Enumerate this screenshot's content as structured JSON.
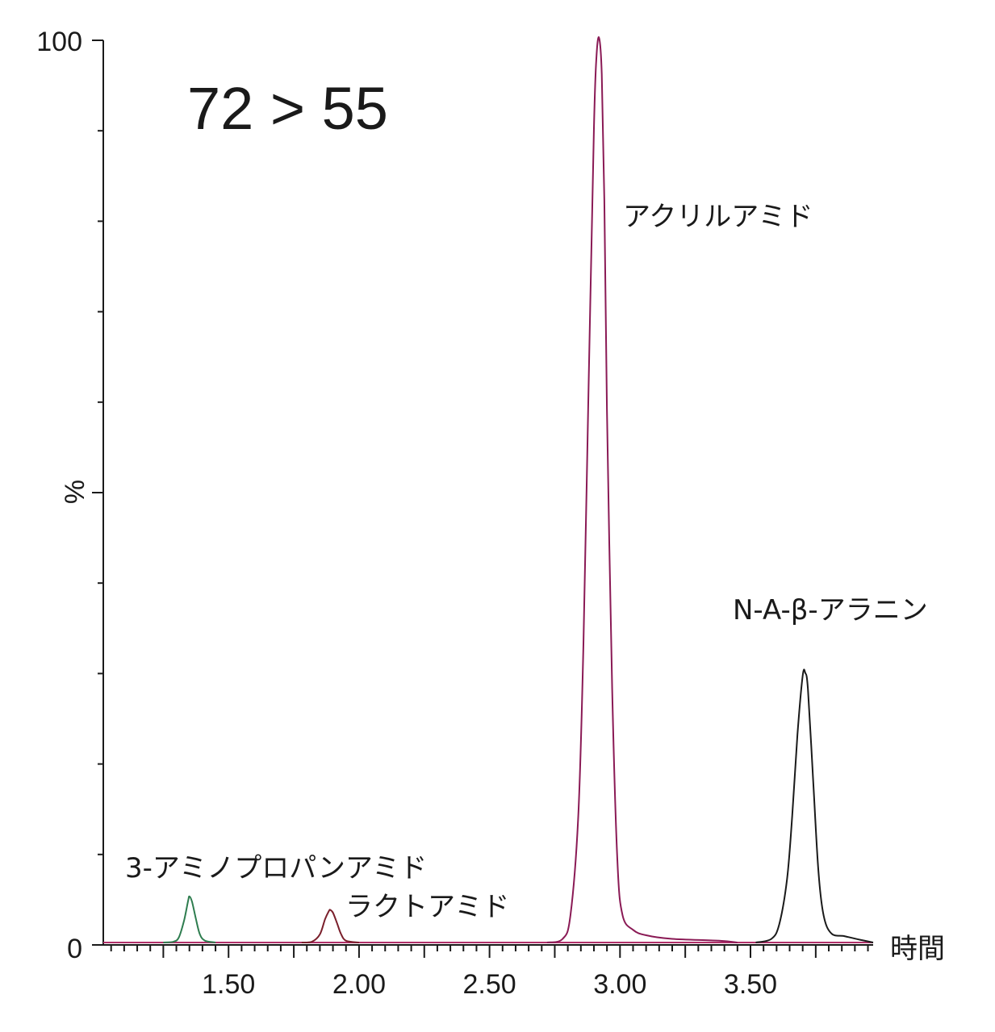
{
  "chart_data": {
    "type": "line",
    "title": "72 > 55",
    "xlabel": "時間",
    "ylabel": "%",
    "xlim": [
      1.02,
      3.97
    ],
    "ylim": [
      0,
      100
    ],
    "x_ticks": [
      1.5,
      2.0,
      2.5,
      3.0,
      3.5
    ],
    "x_tick_labels": [
      "1.50",
      "2.00",
      "2.50",
      "3.00",
      "3.50"
    ],
    "y_tick_labels": [
      "0",
      "%",
      "100"
    ],
    "baseline_color": "#b0306a",
    "series": [
      {
        "name": "3-アミノプロパンアミド",
        "color": "#2e7d4f",
        "peak_x": 1.35,
        "peak_y": 5.1,
        "points": [
          [
            1.25,
            0
          ],
          [
            1.29,
            0.1
          ],
          [
            1.31,
            0.6
          ],
          [
            1.33,
            2.5
          ],
          [
            1.345,
            4.6
          ],
          [
            1.35,
            5.1
          ],
          [
            1.36,
            4.5
          ],
          [
            1.375,
            2.6
          ],
          [
            1.39,
            0.9
          ],
          [
            1.41,
            0.2
          ],
          [
            1.45,
            0
          ]
        ]
      },
      {
        "name": "ラクトアミド",
        "color": "#7a1f2b",
        "peak_x": 1.89,
        "peak_y": 3.6,
        "points": [
          [
            1.78,
            0
          ],
          [
            1.82,
            0.1
          ],
          [
            1.85,
            0.9
          ],
          [
            1.87,
            2.6
          ],
          [
            1.885,
            3.5
          ],
          [
            1.89,
            3.6
          ],
          [
            1.9,
            3.3
          ],
          [
            1.915,
            2.2
          ],
          [
            1.93,
            1.0
          ],
          [
            1.95,
            0.2
          ],
          [
            2.0,
            0
          ]
        ]
      },
      {
        "name": "アクリルアミド",
        "color": "#8a1a55",
        "peak_x": 2.92,
        "peak_y": 100,
        "points": [
          [
            2.72,
            0
          ],
          [
            2.78,
            0.4
          ],
          [
            2.81,
            3
          ],
          [
            2.84,
            14
          ],
          [
            2.86,
            33
          ],
          [
            2.88,
            62
          ],
          [
            2.9,
            90
          ],
          [
            2.91,
            98
          ],
          [
            2.92,
            100
          ],
          [
            2.93,
            96
          ],
          [
            2.94,
            82
          ],
          [
            2.95,
            59
          ],
          [
            2.97,
            28
          ],
          [
            2.99,
            9
          ],
          [
            3.01,
            3
          ],
          [
            3.05,
            1.4
          ],
          [
            3.1,
            0.8
          ],
          [
            3.2,
            0.4
          ],
          [
            3.38,
            0.2
          ],
          [
            3.45,
            0
          ]
        ]
      },
      {
        "name": "N-A-β-アラニン",
        "color": "#1a1a1a",
        "peak_x": 3.71,
        "peak_y": 29.8,
        "points": [
          [
            3.52,
            0
          ],
          [
            3.58,
            0.4
          ],
          [
            3.61,
            2
          ],
          [
            3.64,
            7
          ],
          [
            3.66,
            14
          ],
          [
            3.68,
            23
          ],
          [
            3.7,
            29.5
          ],
          [
            3.71,
            29.8
          ],
          [
            3.72,
            28
          ],
          [
            3.74,
            18
          ],
          [
            3.76,
            8
          ],
          [
            3.78,
            3
          ],
          [
            3.81,
            1
          ],
          [
            3.86,
            0.7
          ],
          [
            3.92,
            0.3
          ],
          [
            3.97,
            0
          ]
        ]
      }
    ]
  }
}
